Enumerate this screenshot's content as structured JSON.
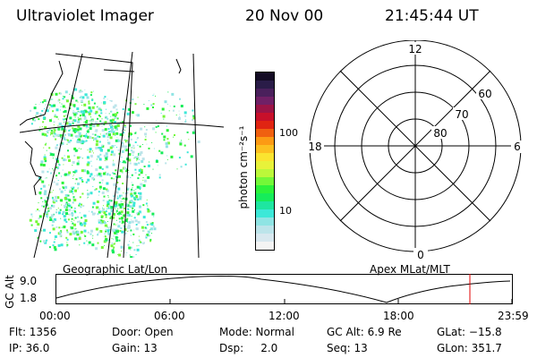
{
  "header": {
    "instrument": "Ultraviolet Imager",
    "date": "20 Nov 00",
    "time": "21:45:44 UT"
  },
  "colorbar": {
    "unit_label": "photon cm⁻²s⁻¹",
    "ticks": [
      "100",
      "10"
    ],
    "colors": [
      "#f4f4f4",
      "#d8e8ef",
      "#bce4ea",
      "#8fe4e4",
      "#3ce8d8",
      "#1ee6a0",
      "#16ec5a",
      "#2cf23a",
      "#74f838",
      "#bcf83a",
      "#e8f23a",
      "#fae430",
      "#fcc020",
      "#fc9a14",
      "#f06010",
      "#e02412",
      "#c8102a",
      "#9c1446",
      "#702066",
      "#4a205c",
      "#2a1c48",
      "#140c24"
    ]
  },
  "map": {
    "projection_label": "Geographic Lat/Lon"
  },
  "polar": {
    "projection_label": "Apex MLat/MLT",
    "mlt_labels": {
      "top": "12",
      "left": "18",
      "right": "6",
      "bottom": "0"
    },
    "lat_labels": [
      "60",
      "70",
      "80"
    ]
  },
  "altitude_plot": {
    "ylabel": "GC Alt",
    "yticks": [
      "9.0",
      "1.8"
    ],
    "xticks": [
      "00:00",
      "06:00",
      "12:00",
      "18:00",
      "23:59"
    ],
    "current_marker_color": "#e00000"
  },
  "status": {
    "flt": "Flt: 1356",
    "ip": "IP: 36.0",
    "door": "Door: Open",
    "gain": "Gain: 13",
    "mode": "Mode: Normal",
    "dsp": "Dsp:     2.0",
    "gc_alt": "GC Alt: 6.9 Re",
    "seq": "Seq: 13",
    "glat": "GLat: −15.8",
    "glon": "GLon: 351.7"
  }
}
